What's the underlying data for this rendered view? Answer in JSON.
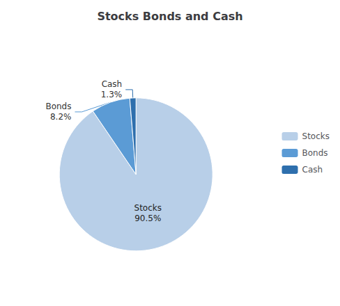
{
  "chart_data": {
    "type": "pie",
    "title": "Stocks Bonds and Cash",
    "categories": [
      "Stocks",
      "Bonds",
      "Cash"
    ],
    "values": [
      90.5,
      8.2,
      1.3
    ],
    "value_labels": [
      "90.5%",
      "8.2%",
      "1.3%"
    ],
    "colors": [
      "#b8cfe8",
      "#5b9bd5",
      "#2e6fad"
    ],
    "data_labels": true,
    "legend": "right"
  }
}
